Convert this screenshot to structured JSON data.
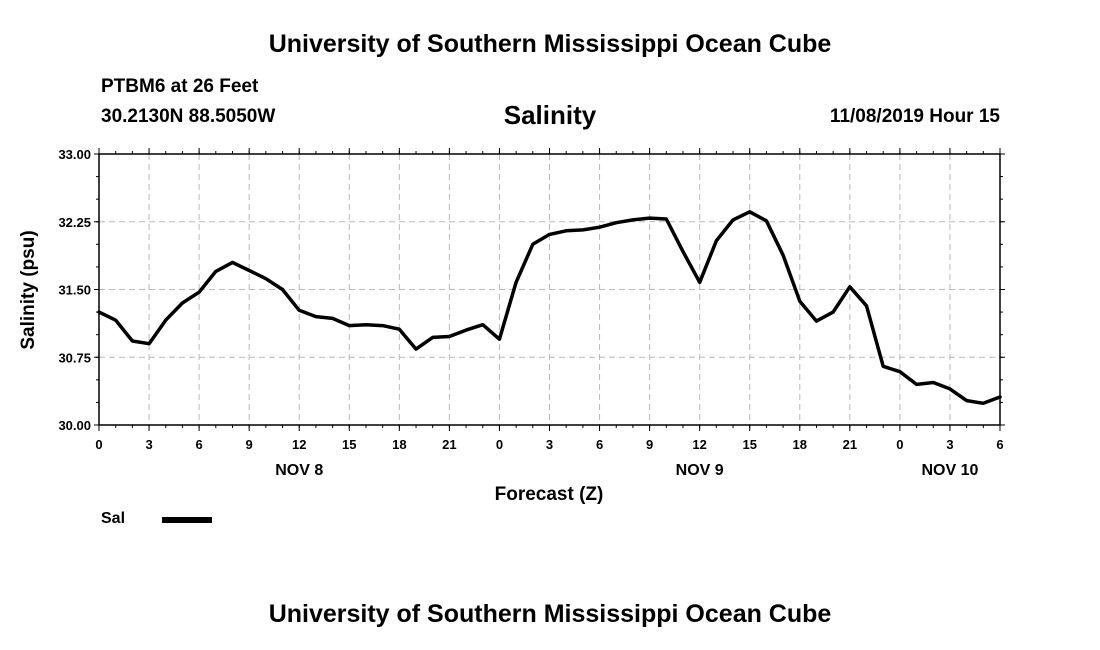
{
  "header": {
    "title": "University of Southern Mississippi Ocean Cube",
    "station": "PTBM6 at 26 Feet",
    "coordinates": "30.2130N 88.5050W",
    "variable": "Salinity",
    "datetime": "11/08/2019 Hour 15"
  },
  "footer": {
    "title": "University of Southern Mississippi Ocean Cube"
  },
  "legend": {
    "label": "Sal",
    "color": "#000000"
  },
  "chart_data": {
    "type": "line",
    "title": "Salinity",
    "xlabel": "Forecast (Z)",
    "ylabel": "Salinity (psu)",
    "ylim": [
      30.0,
      33.0
    ],
    "yticks": [
      "30.00",
      "30.75",
      "31.50",
      "32.25",
      "33.00"
    ],
    "xlim": [
      0,
      54
    ],
    "xtick_step": 3,
    "xtick_labels": [
      "0",
      "3",
      "6",
      "9",
      "12",
      "15",
      "18",
      "21",
      "0",
      "3",
      "6",
      "9",
      "12",
      "15",
      "18",
      "21",
      "0",
      "3",
      "6"
    ],
    "date_labels": [
      {
        "x": 12,
        "label": "NOV 8"
      },
      {
        "x": 36,
        "label": "NOV 9"
      },
      {
        "x": 51,
        "label": "NOV 10"
      }
    ],
    "grid": true,
    "series": [
      {
        "name": "Sal",
        "color": "#000000",
        "x": [
          0,
          1,
          2,
          3,
          4,
          5,
          6,
          7,
          8,
          9,
          10,
          11,
          12,
          13,
          14,
          15,
          16,
          17,
          18,
          19,
          20,
          21,
          22,
          23,
          24,
          25,
          26,
          27,
          28,
          29,
          30,
          31,
          32,
          33,
          34,
          35,
          36,
          37,
          38,
          39,
          40,
          41,
          42,
          43,
          44,
          45,
          46,
          47,
          48,
          49,
          50,
          51,
          52,
          53,
          54
        ],
        "values": [
          31.25,
          31.16,
          30.93,
          30.9,
          31.16,
          31.35,
          31.47,
          31.7,
          31.8,
          31.71,
          31.62,
          31.5,
          31.27,
          31.2,
          31.18,
          31.1,
          31.11,
          31.1,
          31.06,
          30.84,
          30.97,
          30.98,
          31.05,
          31.11,
          30.95,
          31.58,
          32.0,
          32.11,
          32.15,
          32.16,
          32.19,
          32.24,
          32.27,
          32.29,
          32.28,
          31.92,
          31.58,
          32.04,
          32.27,
          32.36,
          32.26,
          31.88,
          31.37,
          31.15,
          31.25,
          31.53,
          31.32,
          30.65,
          30.59,
          30.45,
          30.47,
          30.4,
          30.27,
          30.24,
          30.31
        ]
      }
    ]
  }
}
